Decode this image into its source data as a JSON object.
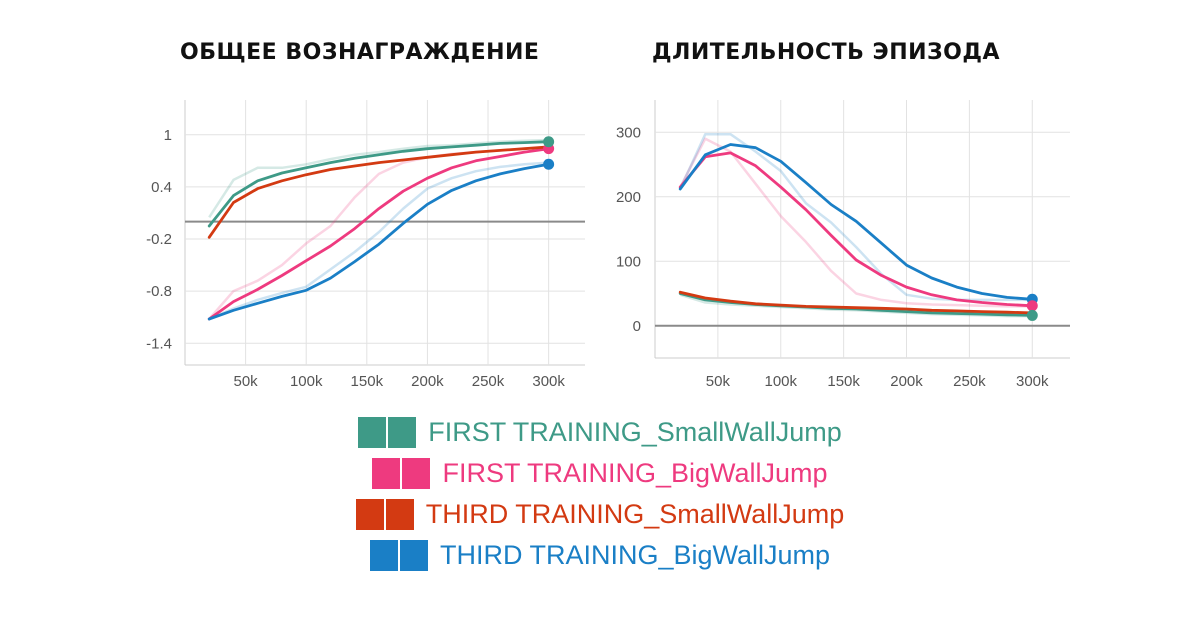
{
  "chart_data": [
    {
      "type": "line",
      "title": "ОБЩЕЕ ВОЗНАГРАЖДЕНИЕ",
      "x_ticks": [
        "50k",
        "100k",
        "150k",
        "200k",
        "250k",
        "300k"
      ],
      "x_tick_values": [
        50000,
        100000,
        150000,
        200000,
        250000,
        300000
      ],
      "y_ticks": [
        "1",
        "0.4",
        "-0.2",
        "-0.8",
        "-1.4"
      ],
      "y_tick_values": [
        1,
        0.4,
        -0.2,
        -0.8,
        -1.4
      ],
      "xlim": [
        0,
        330000
      ],
      "ylim": [
        -1.65,
        1.4
      ],
      "baseline": 0,
      "grid": true,
      "series": [
        {
          "name": "FIRST TRAINING_SmallWallJump",
          "color": "#3e9a87",
          "x": [
            20000,
            40000,
            60000,
            80000,
            100000,
            120000,
            140000,
            160000,
            180000,
            200000,
            220000,
            240000,
            260000,
            280000,
            300000
          ],
          "values": [
            -0.05,
            0.3,
            0.47,
            0.56,
            0.62,
            0.68,
            0.73,
            0.77,
            0.81,
            0.84,
            0.86,
            0.88,
            0.9,
            0.91,
            0.92
          ],
          "smoothed_raw": [
            0.05,
            0.48,
            0.62,
            0.62,
            0.66,
            0.72,
            0.77,
            0.8,
            0.84,
            0.87,
            0.88,
            0.9,
            0.92,
            0.93,
            0.94
          ]
        },
        {
          "name": "FIRST TRAINING_BigWallJump",
          "color": "#ee3a7f",
          "x": [
            20000,
            40000,
            60000,
            80000,
            100000,
            120000,
            140000,
            160000,
            180000,
            200000,
            220000,
            240000,
            260000,
            280000,
            300000
          ],
          "values": [
            -1.12,
            -0.92,
            -0.78,
            -0.62,
            -0.45,
            -0.28,
            -0.08,
            0.15,
            0.35,
            0.5,
            0.62,
            0.7,
            0.75,
            0.8,
            0.84
          ],
          "smoothed_raw": [
            -1.12,
            -0.8,
            -0.68,
            -0.5,
            -0.25,
            -0.05,
            0.28,
            0.55,
            0.68,
            0.74,
            0.78,
            0.8,
            0.82,
            0.84,
            0.86
          ]
        },
        {
          "name": "THIRD TRAINING_SmallWallJump",
          "color": "#d33a12",
          "x": [
            20000,
            40000,
            60000,
            80000,
            100000,
            120000,
            140000,
            160000,
            180000,
            200000,
            220000,
            240000,
            260000,
            280000,
            300000
          ],
          "values": [
            -0.18,
            0.22,
            0.38,
            0.47,
            0.54,
            0.6,
            0.64,
            0.68,
            0.71,
            0.74,
            0.77,
            0.8,
            0.82,
            0.84,
            0.86
          ],
          "smoothed_raw": []
        },
        {
          "name": "THIRD TRAINING_BigWallJump",
          "color": "#1a7fc6",
          "x": [
            20000,
            40000,
            60000,
            80000,
            100000,
            120000,
            140000,
            160000,
            180000,
            200000,
            220000,
            240000,
            260000,
            280000,
            300000
          ],
          "values": [
            -1.12,
            -1.02,
            -0.94,
            -0.86,
            -0.79,
            -0.65,
            -0.46,
            -0.26,
            -0.02,
            0.2,
            0.36,
            0.47,
            0.55,
            0.61,
            0.66
          ],
          "smoothed_raw": [
            -1.12,
            -1.0,
            -0.9,
            -0.82,
            -0.75,
            -0.55,
            -0.35,
            -0.12,
            0.15,
            0.38,
            0.5,
            0.58,
            0.63,
            0.66,
            0.68
          ]
        }
      ]
    },
    {
      "type": "line",
      "title": "ДЛИТЕЛЬНОСТЬ ЭПИЗОДА",
      "x_ticks": [
        "50k",
        "100k",
        "150k",
        "200k",
        "250k",
        "300k"
      ],
      "x_tick_values": [
        50000,
        100000,
        150000,
        200000,
        250000,
        300000
      ],
      "y_ticks": [
        "300",
        "200",
        "100",
        "0"
      ],
      "y_tick_values": [
        300,
        200,
        100,
        0
      ],
      "xlim": [
        0,
        330000
      ],
      "ylim": [
        -50,
        350
      ],
      "baseline": 0,
      "grid": true,
      "series": [
        {
          "name": "FIRST TRAINING_SmallWallJump",
          "color": "#3e9a87",
          "x": [
            20000,
            40000,
            60000,
            80000,
            100000,
            120000,
            140000,
            160000,
            180000,
            200000,
            220000,
            240000,
            260000,
            280000,
            300000
          ],
          "values": [
            50,
            40,
            36,
            33,
            31,
            29,
            27,
            26,
            24,
            22,
            20,
            19,
            18,
            17,
            16
          ],
          "smoothed_raw": [
            48,
            36,
            33,
            31,
            29,
            27,
            25,
            24,
            22,
            20,
            18,
            17,
            16,
            15,
            15
          ]
        },
        {
          "name": "FIRST TRAINING_BigWallJump",
          "color": "#ee3a7f",
          "x": [
            20000,
            40000,
            60000,
            80000,
            100000,
            120000,
            140000,
            160000,
            180000,
            200000,
            220000,
            240000,
            260000,
            280000,
            300000
          ],
          "values": [
            215,
            262,
            268,
            248,
            215,
            180,
            140,
            102,
            78,
            60,
            48,
            40,
            36,
            33,
            31
          ],
          "smoothed_raw": [
            215,
            290,
            270,
            220,
            170,
            130,
            85,
            50,
            40,
            35,
            33,
            32,
            31,
            30,
            30
          ]
        },
        {
          "name": "THIRD TRAINING_SmallWallJump",
          "color": "#d33a12",
          "x": [
            20000,
            40000,
            60000,
            80000,
            100000,
            120000,
            140000,
            160000,
            180000,
            200000,
            220000,
            240000,
            260000,
            280000,
            300000
          ],
          "values": [
            52,
            43,
            38,
            34,
            32,
            30,
            29,
            28,
            27,
            26,
            24,
            23,
            22,
            21,
            20
          ],
          "smoothed_raw": []
        },
        {
          "name": "THIRD TRAINING_BigWallJump",
          "color": "#1a7fc6",
          "x": [
            20000,
            40000,
            60000,
            80000,
            100000,
            120000,
            140000,
            160000,
            180000,
            200000,
            220000,
            240000,
            260000,
            280000,
            300000
          ],
          "values": [
            212,
            265,
            281,
            276,
            255,
            222,
            188,
            162,
            128,
            94,
            74,
            60,
            50,
            44,
            41
          ],
          "smoothed_raw": [
            212,
            297,
            297,
            270,
            240,
            190,
            160,
            122,
            80,
            48,
            42,
            40,
            40,
            40,
            40
          ]
        }
      ]
    }
  ],
  "legend": [
    {
      "label": "FIRST TRAINING_SmallWallJump",
      "color": "#3e9a87"
    },
    {
      "label": "FIRST TRAINING_BigWallJump",
      "color": "#ee3a7f"
    },
    {
      "label": "THIRD TRAINING_SmallWallJump",
      "color": "#d33a12"
    },
    {
      "label": "THIRD TRAINING_BigWallJump",
      "color": "#1a7fc6"
    }
  ]
}
